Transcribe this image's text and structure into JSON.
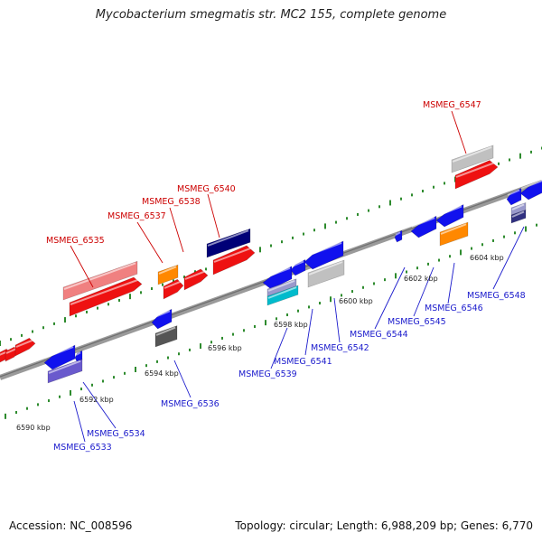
{
  "title": "Mycobacterium smegmatis str. MC2 155, complete genome",
  "footer": {
    "accession": "Accession: NC_008596",
    "topology": "Topology: circular; Length: 6,988,209 bp; Genes: 6,770"
  },
  "colors": {
    "backbone": "#8a8a8a",
    "tick": "#2e8b2e",
    "label_forward": "#cc0000",
    "label_reverse": "#1a1acc"
  },
  "scale_labels": [
    "6590 kbp",
    "6592 kbp",
    "6594 kbp",
    "6596 kbp",
    "6598 kbp",
    "6600 kbp",
    "6602 kbp",
    "6604 kbp"
  ],
  "forward_genes": [
    {
      "name": "MSMEG_6535"
    },
    {
      "name": "MSMEG_6537"
    },
    {
      "name": "MSMEG_6538"
    },
    {
      "name": "MSMEG_6540"
    },
    {
      "name": "MSMEG_6547"
    }
  ],
  "reverse_genes": [
    {
      "name": "MSMEG_6533"
    },
    {
      "name": "MSMEG_6534"
    },
    {
      "name": "MSMEG_6536"
    },
    {
      "name": "MSMEG_6539"
    },
    {
      "name": "MSMEG_6541"
    },
    {
      "name": "MSMEG_6542"
    },
    {
      "name": "MSMEG_6544"
    },
    {
      "name": "MSMEG_6545"
    },
    {
      "name": "MSMEG_6546"
    },
    {
      "name": "MSMEG_6548"
    }
  ]
}
